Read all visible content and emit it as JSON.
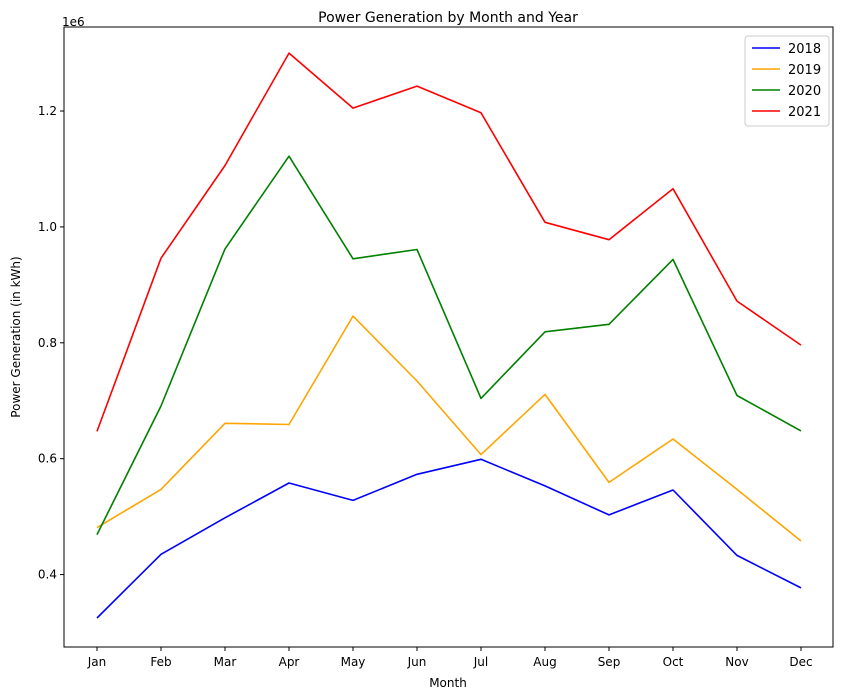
{
  "chart_data": {
    "type": "line",
    "title": "Power Generation by Month and Year",
    "xlabel": "Month",
    "ylabel": "Power Generation (in kWh)",
    "y_offset_label": "1e6",
    "categories": [
      "Jan",
      "Feb",
      "Mar",
      "Apr",
      "May",
      "Jun",
      "Jul",
      "Aug",
      "Sep",
      "Oct",
      "Nov",
      "Dec"
    ],
    "y_ticks": [
      0.4,
      0.6,
      0.8,
      1.0,
      1.2
    ],
    "y_tick_labels": [
      "0.4",
      "0.6",
      "0.8",
      "1.0",
      "1.2"
    ],
    "ylim": [
      0.275,
      1.345
    ],
    "grid": false,
    "legend_position": "top-right",
    "series": [
      {
        "name": "2018",
        "color": "#0000ff",
        "values": [
          0.325,
          0.435,
          0.498,
          0.558,
          0.528,
          0.573,
          0.599,
          0.553,
          0.503,
          0.546,
          0.433,
          0.377
        ]
      },
      {
        "name": "2019",
        "color": "#ffa500",
        "values": [
          0.481,
          0.547,
          0.661,
          0.659,
          0.846,
          0.734,
          0.607,
          0.711,
          0.559,
          0.634,
          0.547,
          0.458
        ]
      },
      {
        "name": "2020",
        "color": "#008000",
        "values": [
          0.469,
          0.691,
          0.962,
          1.122,
          0.945,
          0.961,
          0.704,
          0.819,
          0.832,
          0.944,
          0.709,
          0.648
        ]
      },
      {
        "name": "2021",
        "color": "#ff0000",
        "values": [
          0.647,
          0.946,
          1.106,
          1.3,
          1.205,
          1.243,
          1.197,
          1.008,
          0.978,
          1.066,
          0.872,
          0.796
        ]
      }
    ]
  }
}
